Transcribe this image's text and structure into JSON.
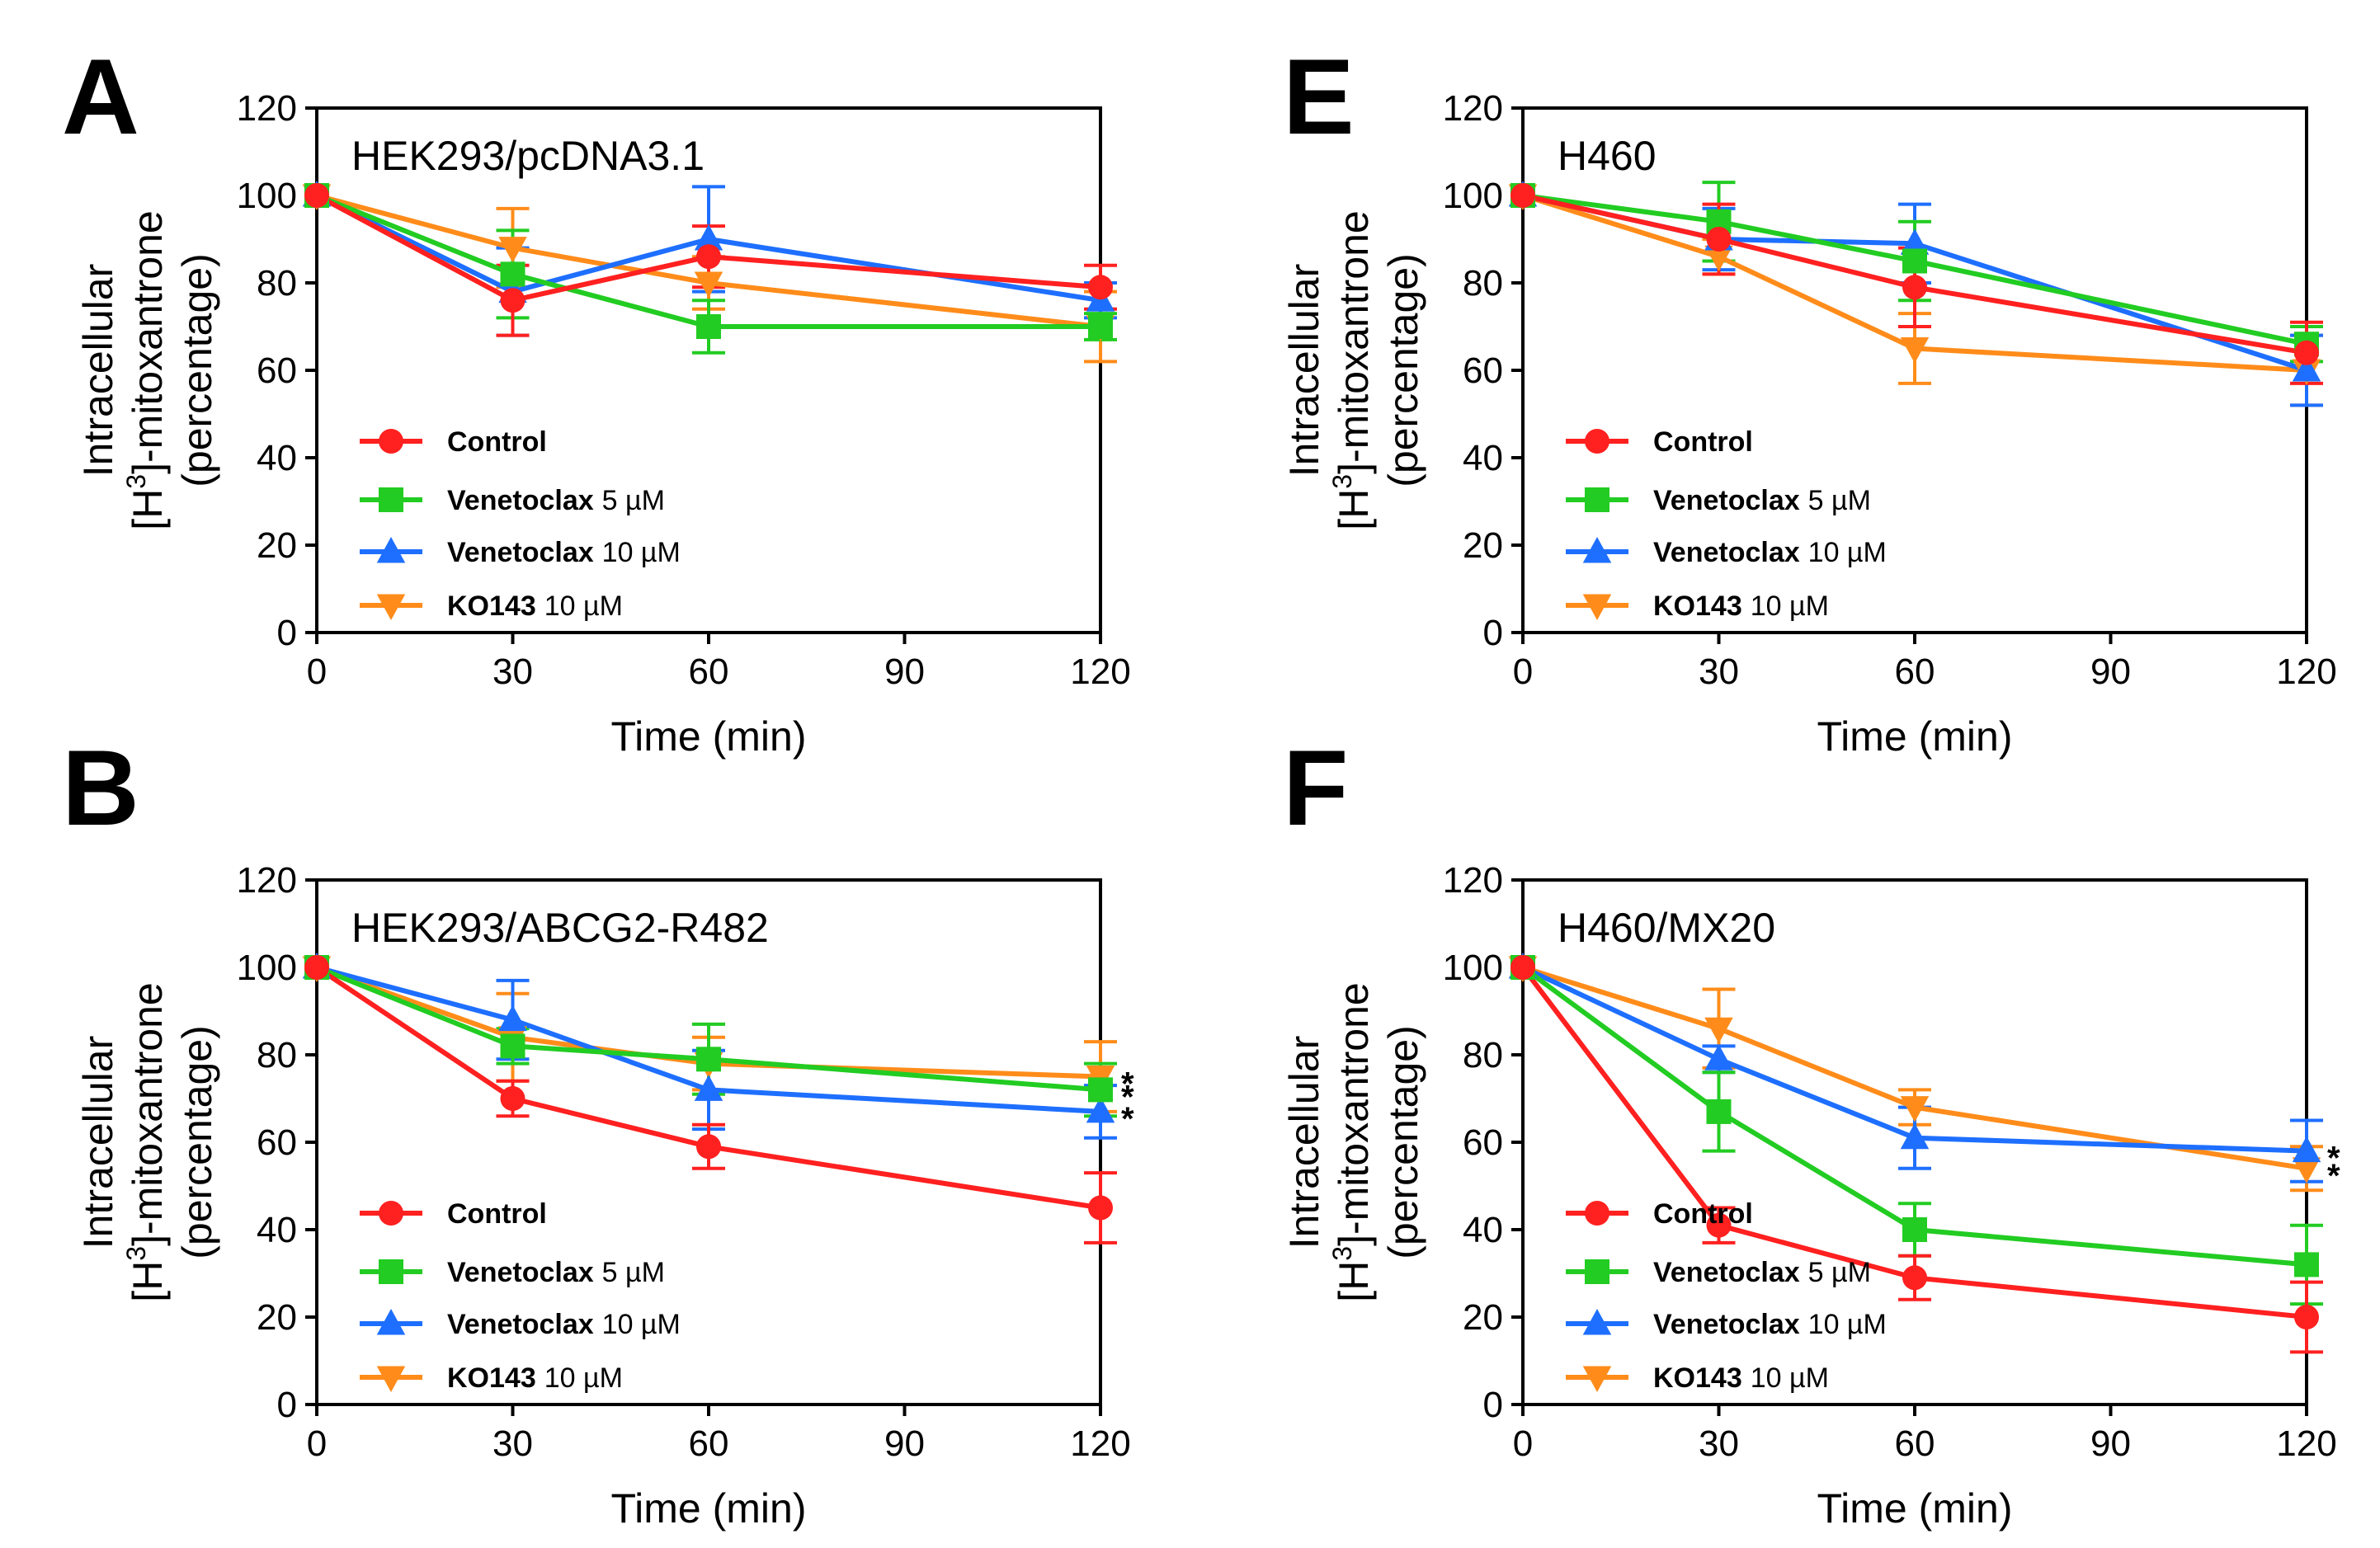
{
  "figure": {
    "x_label": "Time (min)",
    "y_label_line1": "Intracellular",
    "y_label_h": "[H",
    "y_label_sup": "3",
    "y_label_rest": "]-mitoxantrone",
    "y_label_line3": "(percentage)"
  },
  "legend": [
    {
      "name": "Control",
      "dose": "",
      "color": "#ff2020",
      "marker": "circle"
    },
    {
      "name": "Venetoclax",
      "dose": "5 µM",
      "color": "#22cc22",
      "marker": "square"
    },
    {
      "name": "Venetoclax",
      "dose": "10 µM",
      "color": "#1e6fff",
      "marker": "triangle-up"
    },
    {
      "name": "KO143",
      "dose": "10 µM",
      "color": "#ff8c1a",
      "marker": "triangle-down"
    }
  ],
  "chart_data": [
    {
      "panel": "A",
      "type": "line",
      "title": "HEK293/pcDNA3.1",
      "xlabel": "Time (min)",
      "ylabel": "Intracellular [H3]-mitoxantrone (percentage)",
      "x": [
        0,
        30,
        60,
        120
      ],
      "xticks": [
        0,
        30,
        60,
        90,
        120
      ],
      "yticks": [
        0,
        20,
        40,
        60,
        80,
        100,
        120
      ],
      "xlim": [
        0,
        120
      ],
      "ylim": [
        0,
        120
      ],
      "series": [
        {
          "name": "Control",
          "values": [
            100,
            76,
            86,
            79
          ],
          "errors": [
            0,
            8,
            7,
            5
          ]
        },
        {
          "name": "Venetoclax 5 µM",
          "values": [
            100,
            82,
            70,
            70
          ],
          "errors": [
            0,
            10,
            6,
            3
          ]
        },
        {
          "name": "Venetoclax 10 µM",
          "values": [
            100,
            78,
            90,
            76
          ],
          "errors": [
            0,
            10,
            12,
            4
          ]
        },
        {
          "name": "KO143 10 µM",
          "values": [
            100,
            88,
            80,
            70
          ],
          "errors": [
            0,
            9,
            6,
            8
          ]
        }
      ],
      "stars": []
    },
    {
      "panel": "B",
      "type": "line",
      "title": "HEK293/ABCG2-R482",
      "xlabel": "Time (min)",
      "ylabel": "Intracellular [H3]-mitoxantrone (percentage)",
      "x": [
        0,
        30,
        60,
        120
      ],
      "xticks": [
        0,
        30,
        60,
        90,
        120
      ],
      "yticks": [
        0,
        20,
        40,
        60,
        80,
        100,
        120
      ],
      "xlim": [
        0,
        120
      ],
      "ylim": [
        0,
        120
      ],
      "series": [
        {
          "name": "Control",
          "values": [
            100,
            70,
            59,
            45
          ],
          "errors": [
            0,
            4,
            5,
            8
          ]
        },
        {
          "name": "Venetoclax 5 µM",
          "values": [
            100,
            82,
            79,
            72
          ],
          "errors": [
            0,
            4,
            8,
            6
          ]
        },
        {
          "name": "Venetoclax 10 µM",
          "values": [
            100,
            88,
            72,
            67
          ],
          "errors": [
            0,
            9,
            9,
            6
          ]
        },
        {
          "name": "KO143 10 µM",
          "values": [
            100,
            84,
            78,
            75
          ],
          "errors": [
            0,
            10,
            6,
            8
          ]
        }
      ],
      "stars": [
        {
          "text": "*",
          "series": 3
        },
        {
          "text": "*",
          "series": 1
        },
        {
          "text": "*",
          "series": 2
        }
      ]
    },
    {
      "panel": "E",
      "type": "line",
      "title": "H460",
      "xlabel": "Time (min)",
      "ylabel": "Intracellular [H3]-mitoxantrone (percentage)",
      "x": [
        0,
        30,
        60,
        120
      ],
      "xticks": [
        0,
        30,
        60,
        90,
        120
      ],
      "yticks": [
        0,
        20,
        40,
        60,
        80,
        100,
        120
      ],
      "xlim": [
        0,
        120
      ],
      "ylim": [
        0,
        120
      ],
      "series": [
        {
          "name": "Control",
          "values": [
            100,
            90,
            79,
            64
          ],
          "errors": [
            0,
            8,
            9,
            7
          ]
        },
        {
          "name": "Venetoclax 5 µM",
          "values": [
            100,
            94,
            85,
            66
          ],
          "errors": [
            0,
            9,
            9,
            4
          ]
        },
        {
          "name": "Venetoclax 10 µM",
          "values": [
            100,
            90,
            89,
            60
          ],
          "errors": [
            0,
            7,
            9,
            8
          ]
        },
        {
          "name": "KO143 10 µM",
          "values": [
            100,
            86,
            65,
            60
          ],
          "errors": [
            0,
            4,
            8,
            8
          ]
        }
      ],
      "stars": []
    },
    {
      "panel": "F",
      "type": "line",
      "title": "H460/MX20",
      "xlabel": "Time (min)",
      "ylabel": "Intracellular [H3]-mitoxantrone (percentage)",
      "x": [
        0,
        30,
        60,
        120
      ],
      "xticks": [
        0,
        30,
        60,
        90,
        120
      ],
      "yticks": [
        0,
        20,
        40,
        60,
        80,
        100,
        120
      ],
      "xlim": [
        0,
        120
      ],
      "ylim": [
        0,
        120
      ],
      "series": [
        {
          "name": "Control",
          "values": [
            100,
            41,
            29,
            20
          ],
          "errors": [
            0,
            4,
            5,
            8
          ]
        },
        {
          "name": "Venetoclax 5 µM",
          "values": [
            100,
            67,
            40,
            32
          ],
          "errors": [
            0,
            9,
            6,
            9
          ]
        },
        {
          "name": "Venetoclax 10 µM",
          "values": [
            100,
            79,
            61,
            58
          ],
          "errors": [
            0,
            3,
            7,
            7
          ]
        },
        {
          "name": "KO143 10 µM",
          "values": [
            100,
            86,
            68,
            54
          ],
          "errors": [
            0,
            9,
            4,
            5
          ]
        }
      ],
      "stars": [
        {
          "text": "*",
          "series": 2
        },
        {
          "text": "*",
          "series": 3
        }
      ]
    }
  ]
}
